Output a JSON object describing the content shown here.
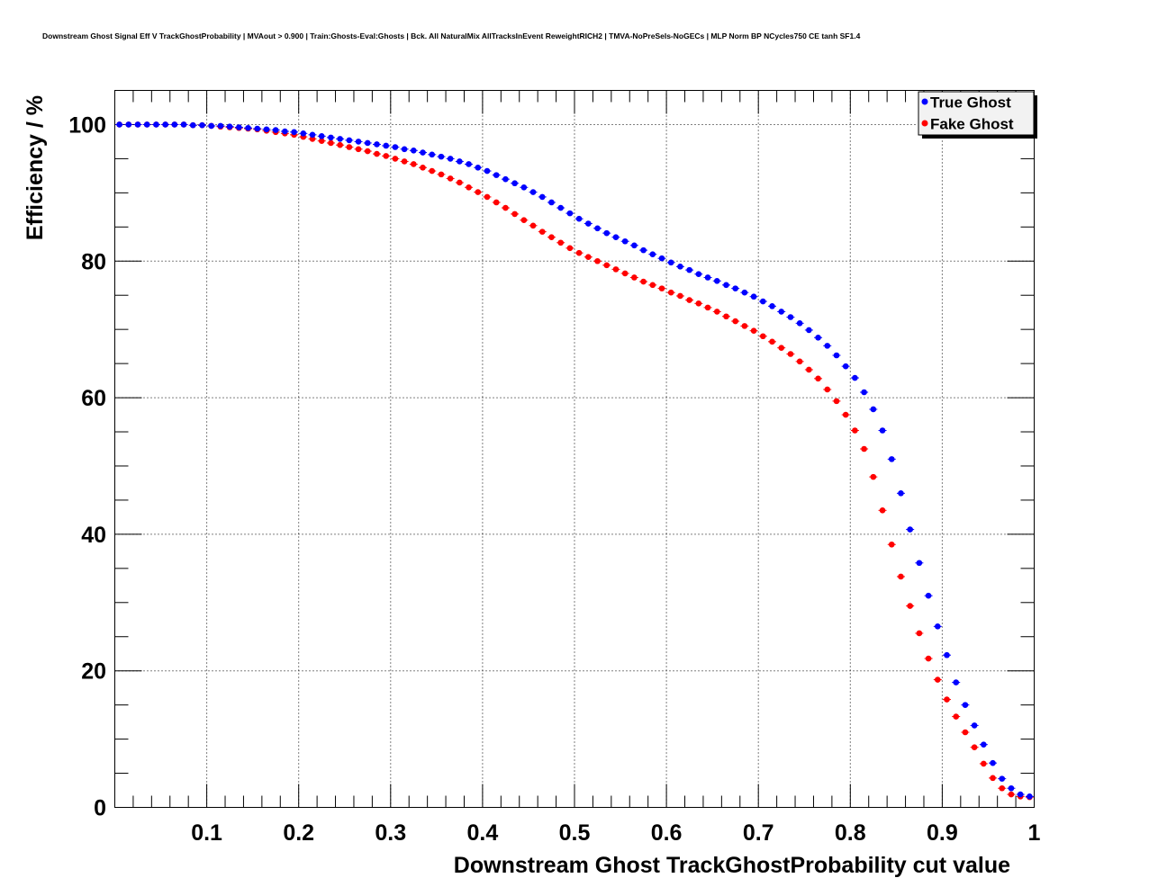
{
  "chart_data": {
    "type": "scatter",
    "title": "Downstream Ghost Signal Eff V TrackGhostProbability | MVAout > 0.900 | Train:Ghosts-Eval:Ghosts | Bck. All NaturalMix AllTracksInEvent ReweightRICH2 | TMVA-NoPreSels-NoGECs | MLP Norm BP NCycles750 CE tanh SF1.4",
    "xlabel": "Downstream Ghost TrackGhostProbability cut value",
    "ylabel": "Efficiency / %",
    "xlim": [
      0,
      1
    ],
    "ylim": [
      0,
      105
    ],
    "x_ticks": [
      {
        "value": 0.1,
        "label": "0.1"
      },
      {
        "value": 0.2,
        "label": "0.2"
      },
      {
        "value": 0.3,
        "label": "0.3"
      },
      {
        "value": 0.4,
        "label": "0.4"
      },
      {
        "value": 0.5,
        "label": "0.5"
      },
      {
        "value": 0.6,
        "label": "0.6"
      },
      {
        "value": 0.7,
        "label": "0.7"
      },
      {
        "value": 0.8,
        "label": "0.8"
      },
      {
        "value": 0.9,
        "label": "0.9"
      },
      {
        "value": 1.0,
        "label": "1"
      }
    ],
    "y_ticks": [
      {
        "value": 0,
        "label": "0"
      },
      {
        "value": 20,
        "label": "20"
      },
      {
        "value": 40,
        "label": "40"
      },
      {
        "value": 60,
        "label": "60"
      },
      {
        "value": 80,
        "label": "80"
      },
      {
        "value": 100,
        "label": "100"
      }
    ],
    "grid": true,
    "legend_position": "top-right",
    "x": [
      0.005,
      0.015,
      0.025,
      0.035,
      0.045,
      0.055,
      0.065,
      0.075,
      0.085,
      0.095,
      0.105,
      0.115,
      0.125,
      0.135,
      0.145,
      0.155,
      0.165,
      0.175,
      0.185,
      0.195,
      0.205,
      0.215,
      0.225,
      0.235,
      0.245,
      0.255,
      0.265,
      0.275,
      0.285,
      0.295,
      0.305,
      0.315,
      0.325,
      0.335,
      0.345,
      0.355,
      0.365,
      0.375,
      0.385,
      0.395,
      0.405,
      0.415,
      0.425,
      0.435,
      0.445,
      0.455,
      0.465,
      0.475,
      0.485,
      0.495,
      0.505,
      0.515,
      0.525,
      0.535,
      0.545,
      0.555,
      0.565,
      0.575,
      0.585,
      0.595,
      0.605,
      0.615,
      0.625,
      0.635,
      0.645,
      0.655,
      0.665,
      0.675,
      0.685,
      0.695,
      0.705,
      0.715,
      0.725,
      0.735,
      0.745,
      0.755,
      0.765,
      0.775,
      0.785,
      0.795,
      0.805,
      0.815,
      0.825,
      0.835,
      0.845,
      0.855,
      0.865,
      0.875,
      0.885,
      0.895,
      0.905,
      0.915,
      0.925,
      0.935,
      0.945,
      0.955,
      0.965,
      0.975,
      0.985,
      0.995
    ],
    "series": [
      {
        "name": "True Ghost",
        "color": "#0000ff",
        "values": [
          100,
          100,
          100,
          100,
          100,
          100,
          100,
          100,
          99.9,
          99.9,
          99.8,
          99.8,
          99.7,
          99.6,
          99.5,
          99.4,
          99.3,
          99.2,
          99.0,
          98.9,
          98.7,
          98.5,
          98.3,
          98.1,
          97.9,
          97.7,
          97.5,
          97.3,
          97.1,
          96.9,
          96.7,
          96.4,
          96.2,
          95.9,
          95.6,
          95.3,
          95.0,
          94.6,
          94.2,
          93.7,
          93.2,
          92.6,
          92.0,
          91.4,
          90.8,
          90.1,
          89.4,
          88.6,
          87.8,
          87.0,
          86.2,
          85.5,
          84.8,
          84.1,
          83.5,
          82.9,
          82.3,
          81.6,
          81.0,
          80.4,
          79.8,
          79.2,
          78.7,
          78.1,
          77.6,
          77.1,
          76.5,
          76.0,
          75.4,
          74.8,
          74.1,
          73.4,
          72.6,
          71.8,
          70.9,
          69.9,
          68.8,
          67.6,
          66.2,
          64.6,
          62.9,
          60.8,
          58.3,
          55.2,
          51.0,
          46.0,
          40.7,
          35.8,
          31.0,
          26.5,
          22.3,
          18.3,
          15.0,
          12.0,
          9.2,
          6.5,
          4.2,
          2.8,
          1.9,
          1.6
        ]
      },
      {
        "name": "Fake Ghost",
        "color": "#ff0000",
        "values": [
          100,
          100,
          100,
          100,
          100,
          100,
          100,
          100,
          99.9,
          99.9,
          99.8,
          99.7,
          99.6,
          99.5,
          99.4,
          99.3,
          99.1,
          98.9,
          98.7,
          98.5,
          98.2,
          97.9,
          97.6,
          97.3,
          97.0,
          96.7,
          96.4,
          96.1,
          95.7,
          95.4,
          95.0,
          94.6,
          94.2,
          93.7,
          93.2,
          92.7,
          92.1,
          91.5,
          90.8,
          90.1,
          89.4,
          88.6,
          87.8,
          86.9,
          86.0,
          85.2,
          84.3,
          83.5,
          82.7,
          81.9,
          81.2,
          80.6,
          80.0,
          79.4,
          78.8,
          78.2,
          77.6,
          77.0,
          76.5,
          76.0,
          75.4,
          74.9,
          74.3,
          73.8,
          73.2,
          72.6,
          71.9,
          71.2,
          70.5,
          69.8,
          69.0,
          68.2,
          67.3,
          66.4,
          65.3,
          64.1,
          62.8,
          61.2,
          59.5,
          57.5,
          55.2,
          52.5,
          48.4,
          43.5,
          38.5,
          33.8,
          29.5,
          25.5,
          21.8,
          18.7,
          15.8,
          13.3,
          11.0,
          8.8,
          6.4,
          4.3,
          2.8,
          1.9,
          1.6,
          1.5
        ]
      }
    ]
  }
}
